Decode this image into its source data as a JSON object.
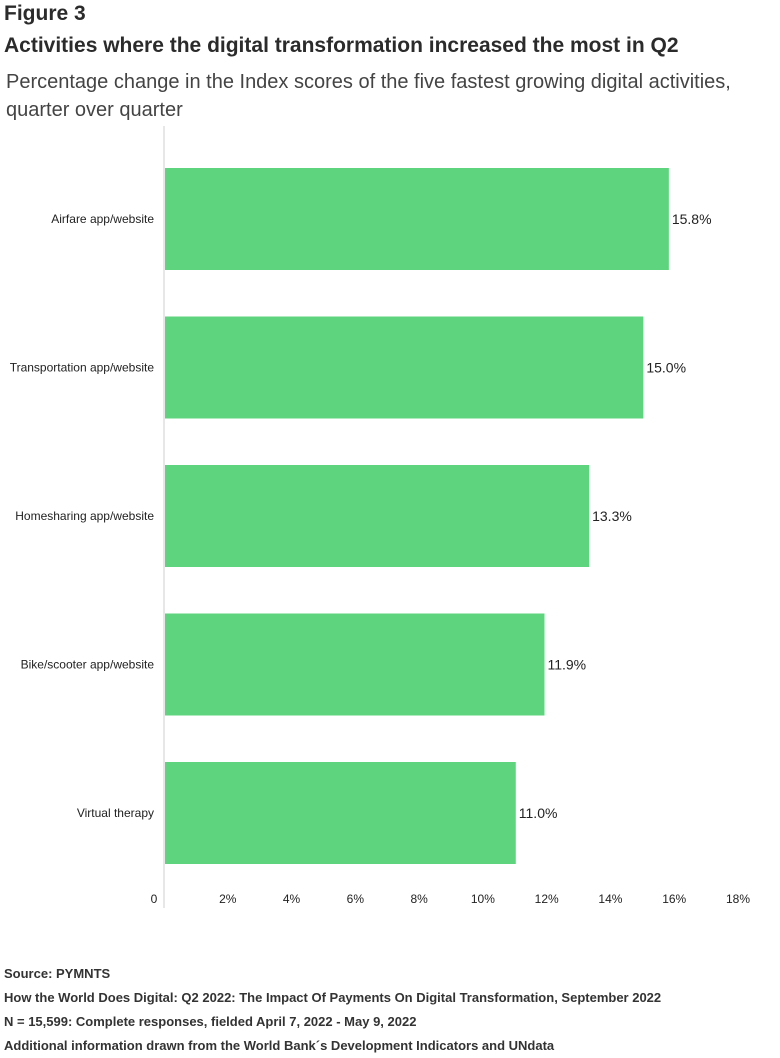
{
  "header": {
    "figure_label": "Figure 3",
    "title": "Activities where the digital transformation increased the most in Q2",
    "subtitle": "Percentage change in the Index scores of the five fastest growing digital activities, quarter over quarter"
  },
  "chart_data": {
    "type": "bar",
    "orientation": "horizontal",
    "categories": [
      "Airfare app/website",
      "Transportation app/website",
      "Homesharing app/website",
      "Bike/scooter app/website",
      "Virtual therapy"
    ],
    "values": [
      15.8,
      15.0,
      13.3,
      11.9,
      11.0
    ],
    "value_labels": [
      "15.8%",
      "15.0%",
      "13.3%",
      "11.9%",
      "11.0%"
    ],
    "xlim": [
      0,
      18
    ],
    "x_ticks": [
      0,
      2,
      4,
      6,
      8,
      10,
      12,
      14,
      16,
      18
    ],
    "x_tick_labels": [
      "0",
      "2%",
      "4%",
      "6%",
      "8%",
      "10%",
      "12%",
      "14%",
      "16%",
      "18%"
    ],
    "bar_color": "#5fd47f",
    "grid": false
  },
  "footer": {
    "source": "Source: PYMNTS",
    "report": "How the World Does Digital: Q2 2022: The Impact Of Payments On Digital Transformation, September 2022",
    "sample": "N = 15,599: Complete responses, fielded April 7, 2022 - May 9, 2022",
    "additional": "Additional information drawn from the World Bank´s  Development Indicators and UNdata"
  }
}
